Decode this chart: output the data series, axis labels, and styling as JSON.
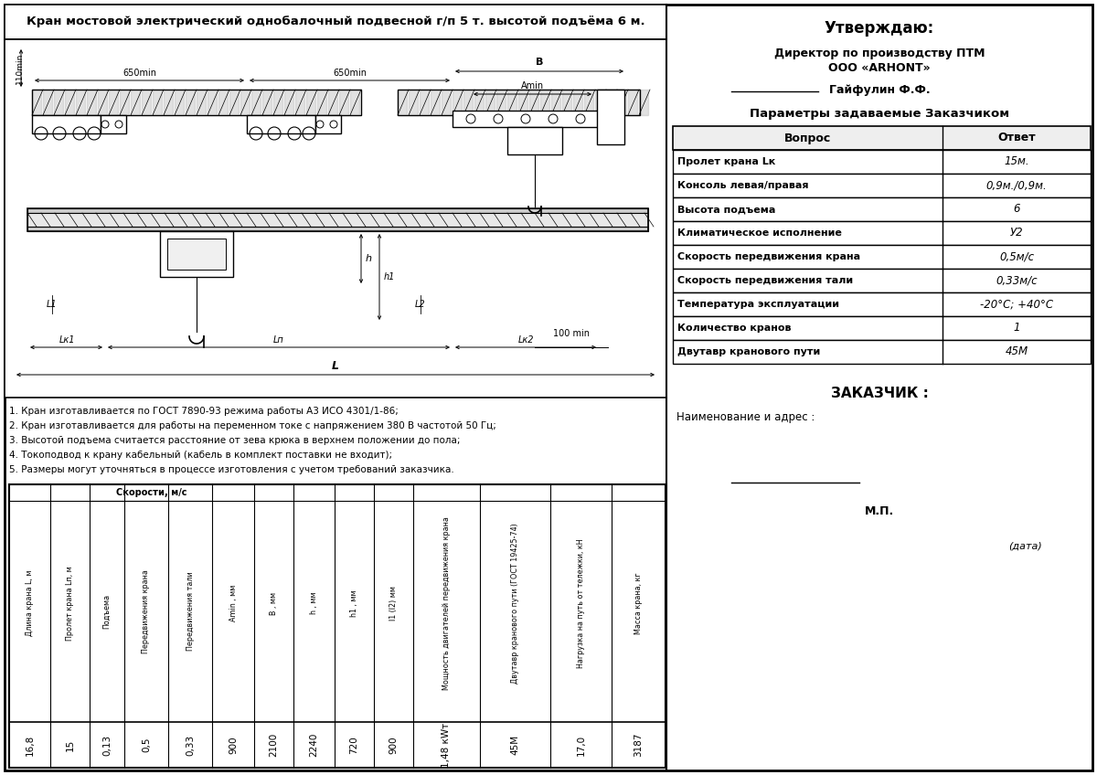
{
  "title": "Кран мостовой электрический однобалочный подвесной г/п 5 т. высотой подъёма 6 м.",
  "right_title": "Утверждаю:",
  "right_line1": "Директор по производству ПТМ",
  "right_line2": "ООО «ARHONT»",
  "right_line3": "Гайфулин Ф.Ф.",
  "params_title": "Параметры задаваемые Заказчиком",
  "params_header": [
    "Вопрос",
    "Ответ"
  ],
  "params_rows": [
    [
      "Пролет крана Lк",
      "15м."
    ],
    [
      "Консоль левая/правая",
      "0,9м./0,9м."
    ],
    [
      "Высота подъема",
      "6"
    ],
    [
      "Климатическое исполнение",
      "У2"
    ],
    [
      "Скорость передвижения крана",
      "0,5м/с"
    ],
    [
      "Скорость передвижения тали",
      "0,33м/с"
    ],
    [
      "Температура эксплуатации",
      "-20°С; +40°С"
    ],
    [
      "Количество кранов",
      "1"
    ],
    [
      "Двутавр кранового пути",
      "45М"
    ]
  ],
  "zakazchik": "ЗАКАЗЧИК :",
  "naim": "Наименование и адрес :",
  "mp": "М.П.",
  "data_label": "(дата)",
  "notes": [
    "1. Кран изготавливается по ГОСТ 7890-93 режима работы А3 ИСО 4301/1-86;",
    "2. Кран изготавливается для работы на переменном токе с напряжением 380 В частотой 50 Гц;",
    "3. Высотой подъема считается расстояние от зева крюка в верхнем положении до пола;",
    "4. Токоподвод к крану кабельный (кабель в комплект поставки не входит);",
    "5. Размеры могут уточняться в процессе изготовления с учетом требований заказчика."
  ],
  "table2_headers": [
    "Длина крана L, м",
    "Пролет крана Lп, м",
    "Подъема",
    "Передвижения крана",
    "Передвижения тали",
    "Amin , мм",
    "B , мм",
    "h , мм",
    "h1 , мм",
    "l1 (l2) мм",
    "Мощность двигателей передвижения крана",
    "Двутавр кранового пути (ГОСТ 19425-74)",
    "Нагрузка на путь от тележки, кН",
    "Масса крана, кг"
  ],
  "table2_speed_header": "Скорости, м/с",
  "table2_values": [
    "16,8",
    "15",
    "0,13",
    "0,5",
    "0,33",
    "900",
    "2100",
    "2240",
    "720",
    "900",
    "1,48 кWт",
    "45М",
    "17,0",
    "3187"
  ],
  "bg_color": "#ffffff"
}
